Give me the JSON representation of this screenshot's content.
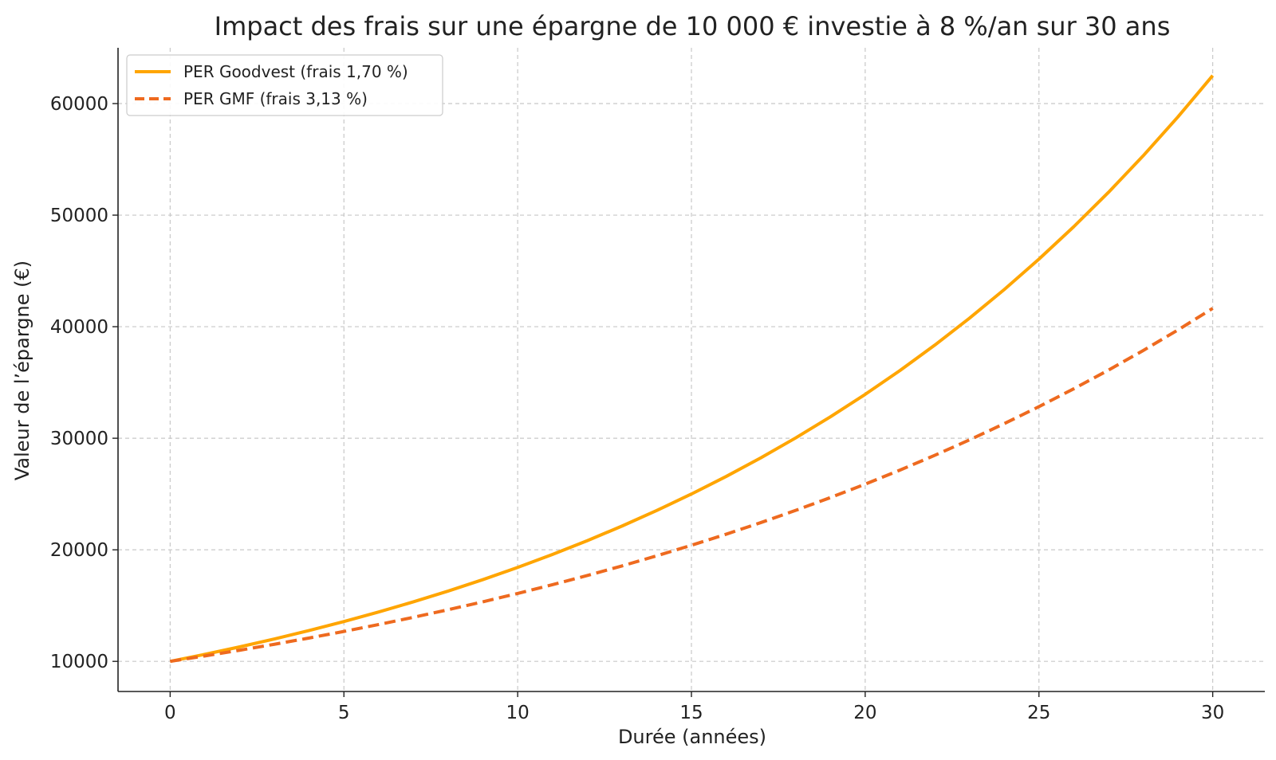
{
  "chart_data": {
    "type": "line",
    "title": "Impact des frais sur une épargne de 10 000 € investie à 8 %/an sur 30 ans",
    "xlabel": "Durée (années)",
    "ylabel": "Valeur de l’épargne (€)",
    "xlim": [
      -1.5,
      31.5
    ],
    "ylim": [
      7300,
      65000
    ],
    "xticks": [
      0,
      5,
      10,
      15,
      20,
      25,
      30
    ],
    "yticks": [
      10000,
      20000,
      30000,
      40000,
      50000,
      60000
    ],
    "grid": true,
    "legend_position": "top-left",
    "x": [
      0,
      1,
      2,
      3,
      4,
      5,
      6,
      7,
      8,
      9,
      10,
      11,
      12,
      13,
      14,
      15,
      16,
      17,
      18,
      19,
      20,
      21,
      22,
      23,
      24,
      25,
      26,
      27,
      28,
      29,
      30
    ],
    "series": [
      {
        "name": "PER Goodvest (frais 1,70 %)",
        "color": "#FFA500",
        "style": "solid",
        "values": [
          10000,
          10630,
          11300,
          12011,
          12768,
          13572,
          14427,
          15336,
          16302,
          17329,
          18421,
          19581,
          20815,
          22126,
          23520,
          25002,
          26577,
          28251,
          30031,
          31923,
          33934,
          36072,
          38344,
          40760,
          43328,
          46057,
          48959,
          52043,
          55322,
          58807,
          62512
        ]
      },
      {
        "name": "PER GMF (frais 3,13 %)",
        "color": "#EE6A1F",
        "style": "dashed",
        "values": [
          10000,
          10487,
          10998,
          11533,
          12095,
          12684,
          13302,
          13949,
          14629,
          15341,
          16088,
          16872,
          17694,
          18555,
          19459,
          20407,
          21400,
          22443,
          23536,
          24682,
          25884,
          27145,
          28467,
          29853,
          31307,
          32832,
          34431,
          36108,
          37866,
          39710,
          41644
        ]
      }
    ]
  }
}
